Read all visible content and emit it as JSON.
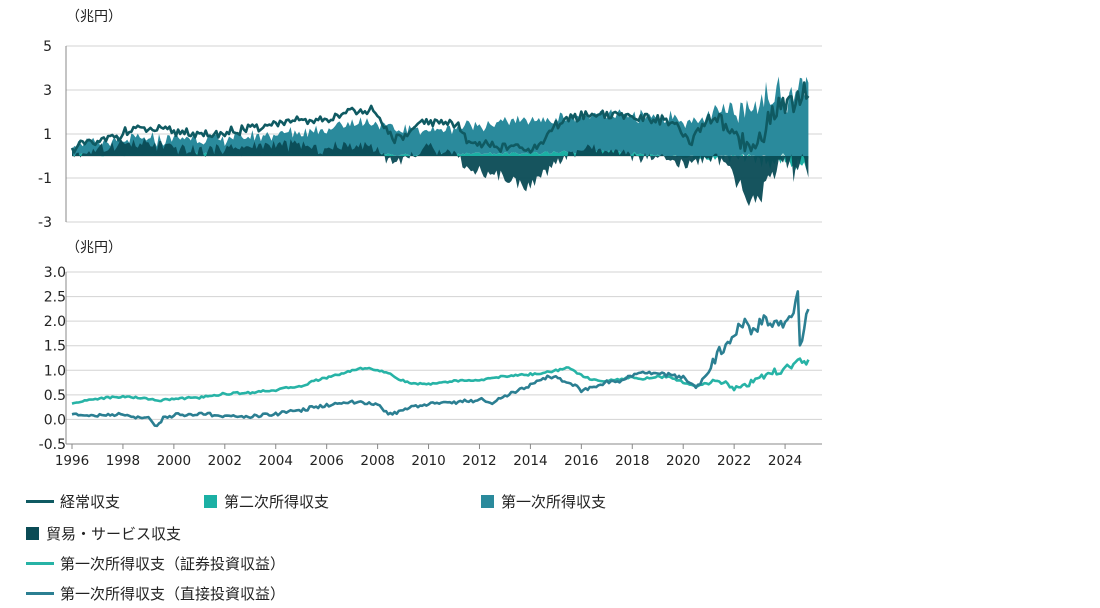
{
  "colors": {
    "current_account": "#0f5a62",
    "secondary_income": "#1bb0a4",
    "primary_income": "#2a8a9c",
    "trade_services": "#0a4b55",
    "portfolio_income": "#27b3a6",
    "direct_income": "#2b7f92",
    "grid": "#d3d3d3",
    "axis": "#888888"
  },
  "chart_data": [
    {
      "type": "area",
      "title": "",
      "ylabel": "（兆円）",
      "ylim": [
        -3,
        5
      ],
      "yticks": [
        5,
        3,
        1,
        -1,
        -3
      ],
      "ytick_labels": [
        "5",
        "3",
        "1",
        "-1",
        "-3"
      ],
      "xlim": [
        1996,
        2024.9
      ],
      "grid": "horizontal",
      "anchors": {
        "current_account": [
          [
            1996.0,
            0.35
          ],
          [
            1996.5,
            0.6
          ],
          [
            1997.0,
            0.55
          ],
          [
            1997.8,
            0.95
          ],
          [
            1998.5,
            1.25
          ],
          [
            1999.5,
            1.15
          ],
          [
            2000.5,
            1.1
          ],
          [
            2001.2,
            0.9
          ],
          [
            2002.0,
            1.05
          ],
          [
            2003.0,
            1.25
          ],
          [
            2004.0,
            1.5
          ],
          [
            2005.0,
            1.55
          ],
          [
            2006.0,
            1.65
          ],
          [
            2007.0,
            2.05
          ],
          [
            2007.7,
            2.15
          ],
          [
            2008.3,
            1.2
          ],
          [
            2008.8,
            0.7
          ],
          [
            2009.5,
            1.3
          ],
          [
            2010.0,
            1.6
          ],
          [
            2011.0,
            1.5
          ],
          [
            2011.5,
            0.8
          ],
          [
            2012.0,
            0.6
          ],
          [
            2012.8,
            0.4
          ],
          [
            2013.5,
            0.4
          ],
          [
            2014.0,
            0.15
          ],
          [
            2014.5,
            0.6
          ],
          [
            2015.0,
            1.4
          ],
          [
            2015.5,
            1.7
          ],
          [
            2016.5,
            1.9
          ],
          [
            2017.5,
            1.9
          ],
          [
            2018.5,
            1.7
          ],
          [
            2019.5,
            1.6
          ],
          [
            2020.3,
            0.6
          ],
          [
            2020.8,
            1.4
          ],
          [
            2021.3,
            1.8
          ],
          [
            2021.8,
            1.0
          ],
          [
            2022.3,
            0.5
          ],
          [
            2022.8,
            0.3
          ],
          [
            2023.3,
            1.5
          ],
          [
            2023.8,
            2.2
          ],
          [
            2024.2,
            2.5
          ],
          [
            2024.6,
            2.3
          ],
          [
            2024.9,
            2.8
          ]
        ],
        "secondary_income": [
          [
            1996.0,
            0.05
          ],
          [
            2001.0,
            0.07
          ],
          [
            2005.0,
            0.08
          ],
          [
            2009.0,
            0.05
          ],
          [
            2012.0,
            0.1
          ],
          [
            2015.0,
            0.15
          ],
          [
            2017.0,
            0.2
          ],
          [
            2020.0,
            -0.05
          ],
          [
            2022.0,
            -0.15
          ],
          [
            2024.0,
            -0.3
          ],
          [
            2024.9,
            -0.4
          ]
        ],
        "primary_income": [
          [
            1996.0,
            0.5
          ],
          [
            1998.0,
            0.6
          ],
          [
            2000.0,
            0.75
          ],
          [
            2002.0,
            0.7
          ],
          [
            2004.0,
            0.9
          ],
          [
            2006.0,
            1.2
          ],
          [
            2007.5,
            1.5
          ],
          [
            2008.5,
            1.2
          ],
          [
            2010.0,
            1.1
          ],
          [
            2012.0,
            1.3
          ],
          [
            2014.0,
            1.5
          ],
          [
            2016.0,
            1.6
          ],
          [
            2018.0,
            1.7
          ],
          [
            2019.5,
            1.75
          ],
          [
            2020.5,
            1.5
          ],
          [
            2021.5,
            1.9
          ],
          [
            2022.5,
            2.3
          ],
          [
            2023.5,
            2.7
          ],
          [
            2024.9,
            3.3
          ]
        ],
        "trade_services": [
          [
            1996.0,
            0.05
          ],
          [
            1997.0,
            0.25
          ],
          [
            1998.0,
            0.6
          ],
          [
            1999.0,
            0.5
          ],
          [
            2000.0,
            0.4
          ],
          [
            2001.0,
            0.2
          ],
          [
            2002.0,
            0.35
          ],
          [
            2003.0,
            0.4
          ],
          [
            2004.0,
            0.55
          ],
          [
            2005.0,
            0.45
          ],
          [
            2006.0,
            0.3
          ],
          [
            2007.0,
            0.5
          ],
          [
            2007.7,
            0.55
          ],
          [
            2008.3,
            0.0
          ],
          [
            2008.8,
            -0.3
          ],
          [
            2009.5,
            0.1
          ],
          [
            2010.0,
            0.4
          ],
          [
            2011.0,
            0.15
          ],
          [
            2011.5,
            -0.5
          ],
          [
            2012.0,
            -0.7
          ],
          [
            2013.0,
            -1.0
          ],
          [
            2014.0,
            -1.4
          ],
          [
            2014.5,
            -0.9
          ],
          [
            2015.0,
            -0.3
          ],
          [
            2016.0,
            0.3
          ],
          [
            2017.0,
            0.2
          ],
          [
            2018.0,
            0.0
          ],
          [
            2019.0,
            -0.15
          ],
          [
            2020.3,
            -0.5
          ],
          [
            2020.8,
            0.0
          ],
          [
            2021.3,
            -0.1
          ],
          [
            2021.8,
            -0.7
          ],
          [
            2022.3,
            -1.5
          ],
          [
            2022.8,
            -2.4
          ],
          [
            2023.3,
            -1.0
          ],
          [
            2023.8,
            -0.5
          ],
          [
            2024.3,
            -0.6
          ],
          [
            2024.9,
            -0.5
          ]
        ]
      }
    },
    {
      "type": "line",
      "title": "",
      "ylabel": "（兆円）",
      "ylim": [
        -0.5,
        3.0
      ],
      "yticks": [
        3.0,
        2.5,
        2.0,
        1.5,
        1.0,
        0.5,
        0.0,
        -0.5
      ],
      "ytick_labels": [
        "3.0",
        "2.5",
        "2.0",
        "1.5",
        "1.0",
        "0.5",
        "0.0",
        "-0.5"
      ],
      "xlim": [
        1996,
        2024.9
      ],
      "xticks": [
        1996,
        1998,
        2000,
        2002,
        2004,
        2006,
        2008,
        2010,
        2012,
        2014,
        2016,
        2018,
        2020,
        2022,
        2024
      ],
      "xtick_labels": [
        "1996",
        "1998",
        "2000",
        "2002",
        "2004",
        "2006",
        "2008",
        "2010",
        "2012",
        "2014",
        "2016",
        "2018",
        "2020",
        "2022",
        "2024"
      ],
      "grid": "horizontal",
      "series": [
        {
          "name": "第一次所得収支（証券投資収益）",
          "key": "portfolio_income",
          "anchors": [
            [
              1996.0,
              0.32
            ],
            [
              1996.5,
              0.38
            ],
            [
              1997.0,
              0.42
            ],
            [
              1998.0,
              0.47
            ],
            [
              1999.0,
              0.42
            ],
            [
              1999.5,
              0.38
            ],
            [
              2000.0,
              0.42
            ],
            [
              2001.0,
              0.45
            ],
            [
              2002.0,
              0.52
            ],
            [
              2003.0,
              0.55
            ],
            [
              2004.0,
              0.6
            ],
            [
              2005.0,
              0.68
            ],
            [
              2005.5,
              0.78
            ],
            [
              2006.0,
              0.85
            ],
            [
              2007.0,
              1.0
            ],
            [
              2007.5,
              1.05
            ],
            [
              2008.0,
              1.0
            ],
            [
              2008.5,
              0.92
            ],
            [
              2009.0,
              0.78
            ],
            [
              2009.5,
              0.72
            ],
            [
              2010.0,
              0.72
            ],
            [
              2011.0,
              0.78
            ],
            [
              2012.0,
              0.8
            ],
            [
              2013.0,
              0.88
            ],
            [
              2014.0,
              0.92
            ],
            [
              2014.5,
              0.95
            ],
            [
              2015.0,
              1.0
            ],
            [
              2015.5,
              1.05
            ],
            [
              2016.0,
              0.9
            ],
            [
              2016.5,
              0.8
            ],
            [
              2017.0,
              0.78
            ],
            [
              2017.5,
              0.82
            ],
            [
              2018.0,
              0.85
            ],
            [
              2018.5,
              0.82
            ],
            [
              2019.0,
              0.88
            ],
            [
              2019.5,
              0.85
            ],
            [
              2020.0,
              0.75
            ],
            [
              2020.5,
              0.7
            ],
            [
              2021.0,
              0.72
            ],
            [
              2021.5,
              0.78
            ],
            [
              2022.0,
              0.62
            ],
            [
              2022.5,
              0.7
            ],
            [
              2023.0,
              0.85
            ],
            [
              2023.5,
              0.95
            ],
            [
              2024.0,
              1.05
            ],
            [
              2024.5,
              1.18
            ],
            [
              2024.9,
              1.18
            ]
          ]
        },
        {
          "name": "第一次所得収支（直接投資収益）",
          "key": "direct_income",
          "anchors": [
            [
              1996.0,
              0.12
            ],
            [
              1997.0,
              0.08
            ],
            [
              1998.0,
              0.1
            ],
            [
              1999.0,
              0.02
            ],
            [
              1999.3,
              -0.15
            ],
            [
              1999.6,
              0.05
            ],
            [
              2000.0,
              0.08
            ],
            [
              2001.0,
              0.1
            ],
            [
              2002.0,
              0.08
            ],
            [
              2003.0,
              0.05
            ],
            [
              2004.0,
              0.12
            ],
            [
              2005.0,
              0.2
            ],
            [
              2006.0,
              0.28
            ],
            [
              2007.0,
              0.35
            ],
            [
              2008.0,
              0.3
            ],
            [
              2008.5,
              0.1
            ],
            [
              2009.0,
              0.2
            ],
            [
              2010.0,
              0.32
            ],
            [
              2011.0,
              0.35
            ],
            [
              2012.0,
              0.4
            ],
            [
              2012.5,
              0.35
            ],
            [
              2013.0,
              0.45
            ],
            [
              2013.5,
              0.6
            ],
            [
              2014.0,
              0.7
            ],
            [
              2014.5,
              0.85
            ],
            [
              2015.0,
              0.85
            ],
            [
              2015.5,
              0.75
            ],
            [
              2016.0,
              0.6
            ],
            [
              2016.5,
              0.65
            ],
            [
              2017.0,
              0.75
            ],
            [
              2017.5,
              0.78
            ],
            [
              2018.0,
              0.9
            ],
            [
              2018.5,
              0.95
            ],
            [
              2019.0,
              0.95
            ],
            [
              2019.5,
              0.9
            ],
            [
              2020.0,
              0.85
            ],
            [
              2020.5,
              0.65
            ],
            [
              2021.0,
              0.95
            ],
            [
              2021.3,
              1.3
            ],
            [
              2021.6,
              1.45
            ],
            [
              2021.9,
              1.6
            ],
            [
              2022.2,
              1.9
            ],
            [
              2022.5,
              2.0
            ],
            [
              2022.8,
              1.8
            ],
            [
              2023.0,
              2.0
            ],
            [
              2023.5,
              1.95
            ],
            [
              2024.0,
              1.95
            ],
            [
              2024.3,
              2.1
            ],
            [
              2024.5,
              2.6
            ],
            [
              2024.6,
              1.4
            ],
            [
              2024.9,
              2.2
            ]
          ]
        }
      ]
    }
  ],
  "legend": [
    {
      "label": "経常収支",
      "marker": "line",
      "color_key": "current_account"
    },
    {
      "label": "第二次所得収支",
      "marker": "box",
      "color_key": "secondary_income"
    },
    {
      "label": "第一次所得収支",
      "marker": "box",
      "color_key": "primary_income"
    },
    {
      "label": "貿易・サービス収支",
      "marker": "box",
      "color_key": "trade_services"
    },
    {
      "label": "第一次所得収支（証券投資収益）",
      "marker": "line",
      "color_key": "portfolio_income"
    },
    {
      "label": "第一次所得収支（直接投資収益）",
      "marker": "line",
      "color_key": "direct_income"
    }
  ]
}
